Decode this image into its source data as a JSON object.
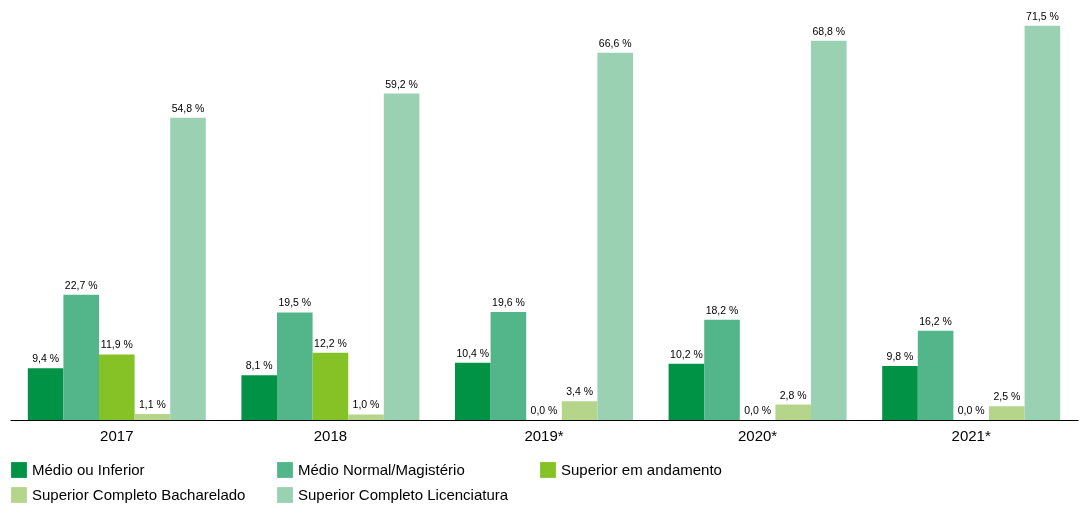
{
  "chart_data": {
    "type": "bar",
    "categories": [
      "2017",
      "2018",
      "2019*",
      "2020*",
      "2021*"
    ],
    "series": [
      {
        "name": "Médio ou Inferior",
        "color": "#009245",
        "values": [
          9.4,
          8.1,
          10.4,
          10.2,
          9.8
        ],
        "value_labels": [
          "9,4 %",
          "8,1 %",
          "10,4 %",
          "10,2 %",
          "9,8 %"
        ]
      },
      {
        "name": "Médio Normal/Magistério",
        "color": "#52b68a",
        "values": [
          22.7,
          19.5,
          19.6,
          18.2,
          16.2
        ],
        "value_labels": [
          "22,7 %",
          "19,5 %",
          "19,6 %",
          "18,2 %",
          "16,2 %"
        ]
      },
      {
        "name": "Superior em andamento",
        "color": "#84c225",
        "values": [
          11.9,
          12.2,
          0.0,
          0.0,
          0.0
        ],
        "value_labels": [
          "11,9 %",
          "12,2 %",
          "0,0 %",
          "0,0 %",
          "0,0 %"
        ]
      },
      {
        "name": "Superior Completo Bacharelado",
        "color": "#b5d68a",
        "values": [
          1.1,
          1.0,
          3.4,
          2.8,
          2.5
        ],
        "value_labels": [
          "1,1 %",
          "1,0 %",
          "3,4 %",
          "2,8 %",
          "2,5 %"
        ]
      },
      {
        "name": "Superior Completo Licenciatura",
        "color": "#99d1b2",
        "values": [
          54.8,
          59.2,
          66.6,
          68.8,
          71.5
        ],
        "value_labels": [
          "54,8 %",
          "59,2 %",
          "66,6 %",
          "68,8 %",
          "71,5 %"
        ]
      }
    ],
    "legend": "bottom",
    "grid": false
  }
}
